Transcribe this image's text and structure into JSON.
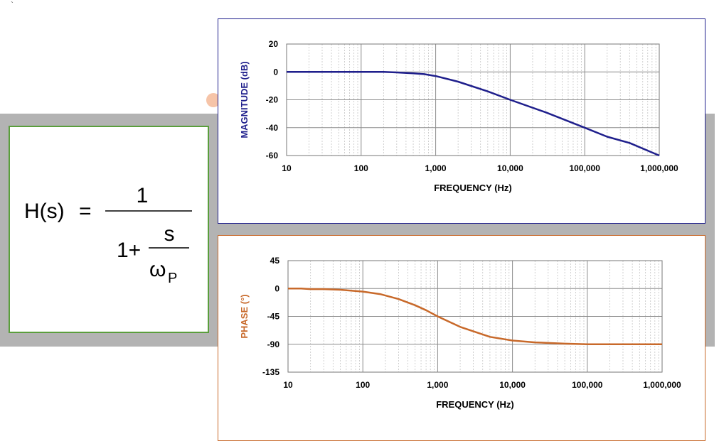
{
  "corner_mark": "`",
  "formula": {
    "lhs": "H(s)",
    "equals": "=",
    "numerator": "1",
    "one_plus": "1+",
    "s": "s",
    "omega": "ω",
    "subscript": "P"
  },
  "colors": {
    "magnitude": "#1f1f8c",
    "phase": "#c8692a",
    "grid": "#b0b0b0",
    "formula_border": "#5a9e3c"
  },
  "chart_data": [
    {
      "type": "line",
      "id": "magnitude",
      "title": "",
      "xlabel": "FREQUENCY (Hz)",
      "ylabel": "MAGNITUDE (dB)",
      "xscale": "log",
      "xlim": [
        10,
        1000000
      ],
      "ylim": [
        -60,
        20
      ],
      "xticks": [
        10,
        100,
        1000,
        10000,
        100000,
        1000000
      ],
      "xtick_labels": [
        "10",
        "100",
        "1,000",
        "10,000",
        "100,000",
        "1,000,000"
      ],
      "yticks": [
        20,
        0,
        -20,
        -40,
        -60
      ],
      "ytick_labels": [
        "20",
        "0",
        "-20",
        "-40",
        "-60"
      ],
      "grid": true,
      "series": [
        {
          "name": "Magnitude",
          "x": [
            10,
            100,
            200,
            300,
            500,
            700,
            1000,
            2000,
            5000,
            10000,
            30000,
            100000,
            200000,
            400000,
            1000000
          ],
          "y": [
            0,
            0,
            0,
            -0.4,
            -1,
            -1.6,
            -3,
            -7,
            -14,
            -20,
            -29,
            -40,
            -46.5,
            -51,
            -60
          ]
        }
      ]
    },
    {
      "type": "line",
      "id": "phase",
      "title": "",
      "xlabel": "FREQUENCY (Hz)",
      "ylabel": "PHASE (°)",
      "xscale": "log",
      "xlim": [
        10,
        1000000
      ],
      "ylim": [
        -135,
        45
      ],
      "xticks": [
        10,
        100,
        1000,
        10000,
        100000,
        1000000
      ],
      "xtick_labels": [
        "10",
        "100",
        "1,000",
        "10,000",
        "100,000",
        "1,000,000"
      ],
      "yticks": [
        45,
        0,
        -45,
        -90,
        -135
      ],
      "ytick_labels": [
        "45",
        "0",
        "-45",
        "-90",
        "-135"
      ],
      "grid": true,
      "series": [
        {
          "name": "Phase",
          "x": [
            10,
            15,
            20,
            30,
            50,
            100,
            170,
            300,
            500,
            700,
            1000,
            2000,
            5000,
            10000,
            20000,
            50000,
            100000,
            1000000
          ],
          "y": [
            0,
            0,
            -1,
            -1,
            -2,
            -5,
            -9,
            -17,
            -27,
            -35,
            -45,
            -62,
            -78,
            -84,
            -87,
            -89,
            -90,
            -90
          ]
        }
      ]
    }
  ]
}
